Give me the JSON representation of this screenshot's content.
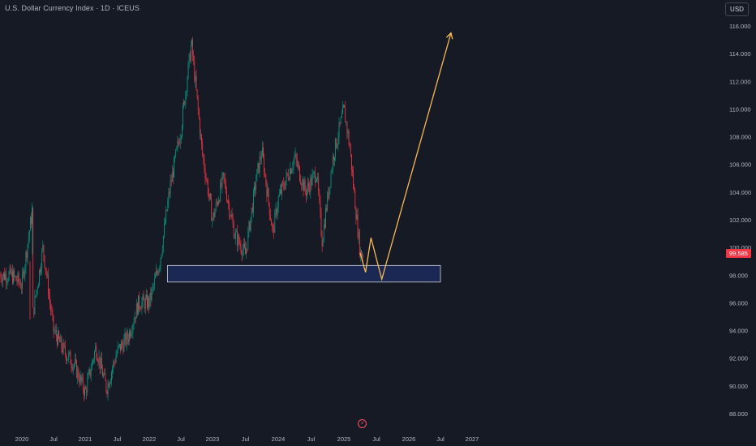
{
  "header": {
    "title": "U.S. Dollar Currency Index · 1D · ICEUS",
    "currency_button": "USD"
  },
  "price_axis": {
    "last_price": "99.585"
  },
  "chart_data": {
    "type": "candlestick",
    "title": "U.S. Dollar Currency Index · 1D · ICEUS",
    "xlabel": "",
    "ylabel": "",
    "ylim": [
      87.5,
      117.5
    ],
    "y_ticks": [
      "88.000",
      "90.000",
      "92.000",
      "94.000",
      "96.000",
      "98.000",
      "100.000",
      "102.000",
      "104.000",
      "106.000",
      "108.000",
      "110.000",
      "112.000",
      "114.000",
      "116.000"
    ],
    "x_tick_labels": [
      "2020",
      "Jul",
      "2021",
      "Jul",
      "2022",
      "Jul",
      "2023",
      "Jul",
      "2024",
      "Jul",
      "2025",
      "Jul",
      "2026",
      "Jul",
      "2027"
    ],
    "last_price": 99.585,
    "price_path": [
      [
        "2019-11",
        98.0
      ],
      [
        "2020-01",
        97.3
      ],
      [
        "2020-03",
        102.8
      ],
      [
        "2020-03",
        95.0
      ],
      [
        "2020-05",
        100.0
      ],
      [
        "2020-07",
        94.0
      ],
      [
        "2020-09",
        92.5
      ],
      [
        "2020-11",
        91.5
      ],
      [
        "2021-01",
        89.5
      ],
      [
        "2021-03",
        92.8
      ],
      [
        "2021-05",
        89.8
      ],
      [
        "2021-07",
        92.5
      ],
      [
        "2021-09",
        93.5
      ],
      [
        "2021-11",
        96.0
      ],
      [
        "2022-01",
        96.0
      ],
      [
        "2022-03",
        99.0
      ],
      [
        "2022-05",
        104.5
      ],
      [
        "2022-07",
        108.5
      ],
      [
        "2022-09",
        114.8
      ],
      [
        "2022-11",
        107.0
      ],
      [
        "2023-01",
        102.0
      ],
      [
        "2023-03",
        105.0
      ],
      [
        "2023-05",
        101.0
      ],
      [
        "2023-07",
        99.5
      ],
      [
        "2023-09",
        105.0
      ],
      [
        "2023-10",
        107.0
      ],
      [
        "2023-12",
        101.0
      ],
      [
        "2024-01",
        103.5
      ],
      [
        "2024-04",
        106.5
      ],
      [
        "2024-06",
        104.0
      ],
      [
        "2024-08",
        105.5
      ],
      [
        "2024-09",
        100.5
      ],
      [
        "2024-11",
        106.5
      ],
      [
        "2025-01",
        110.0
      ],
      [
        "2025-02",
        107.5
      ],
      [
        "2025-03",
        103.5
      ],
      [
        "2025-04",
        99.6
      ]
    ],
    "zone": {
      "from": "2022-04",
      "to": "2026-07",
      "y_low": 97.5,
      "y_high": 98.7
    },
    "projection": [
      [
        "2025-04",
        99.6
      ],
      [
        "2025-05",
        98.2
      ],
      [
        "2025-06",
        100.7
      ],
      [
        "2025-08",
        97.7
      ],
      [
        "2026-09",
        115.5
      ]
    ],
    "colors": {
      "background": "#161a25",
      "up": "#089981",
      "down": "#f23645",
      "projection": "#f6b756",
      "zone_fill": "#1c2b5c",
      "zone_border": "#d1d4dc"
    },
    "grid": false
  }
}
